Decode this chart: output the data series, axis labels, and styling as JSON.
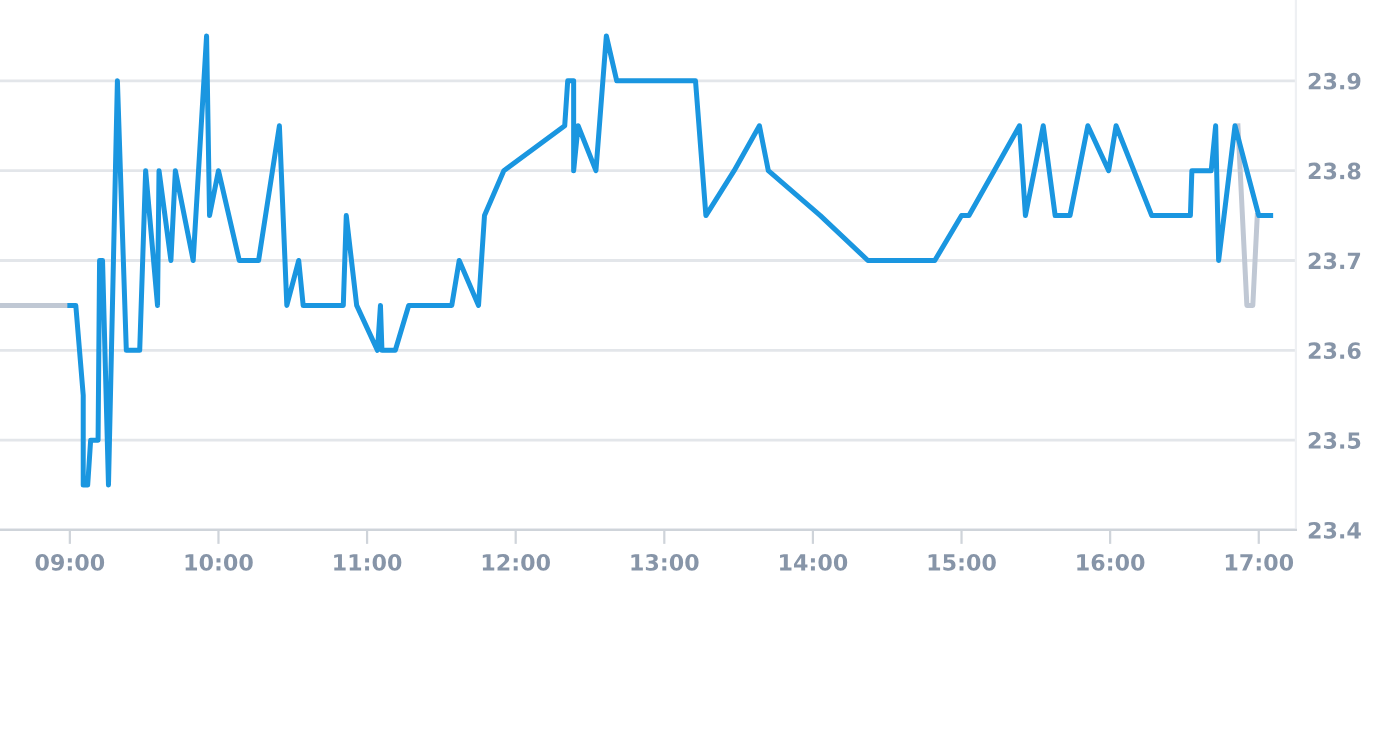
{
  "chart_data": {
    "type": "line",
    "xlim": [
      8.53,
      17.25
    ],
    "ylim": [
      23.4,
      23.99
    ],
    "xticks": [
      {
        "value": 9,
        "label": "09:00"
      },
      {
        "value": 10,
        "label": "10:00"
      },
      {
        "value": 11,
        "label": "11:00"
      },
      {
        "value": 12,
        "label": "12:00"
      },
      {
        "value": 13,
        "label": "13:00"
      },
      {
        "value": 14,
        "label": "14:00"
      },
      {
        "value": 15,
        "label": "15:00"
      },
      {
        "value": 16,
        "label": "16:00"
      },
      {
        "value": 17,
        "label": "17:00"
      }
    ],
    "yticks": [
      23.4,
      23.5,
      23.6,
      23.7,
      23.8,
      23.9
    ],
    "grid": "y",
    "legend": false,
    "marker": "none",
    "line_style": "solid",
    "series": [
      {
        "color": "#c0c8d4",
        "x": [
          8.53,
          9.0,
          9.01,
          16.84,
          16.86,
          16.92,
          16.96,
          16.99
        ],
        "values": [
          23.65,
          23.65,
          null,
          null,
          23.85,
          23.65,
          23.65,
          23.75
        ]
      },
      {
        "color": "#1a96e0",
        "x": [
          9.0,
          9.04,
          9.09,
          9.09,
          9.12,
          9.14,
          9.19,
          9.2,
          9.22,
          9.26,
          9.32,
          9.38,
          9.47,
          9.51,
          9.59,
          9.6,
          9.68,
          9.71,
          9.83,
          9.92,
          9.94,
          10.0,
          10.14,
          10.27,
          10.41,
          10.46,
          10.54,
          10.57,
          10.84,
          10.86,
          10.93,
          11.07,
          11.09,
          11.1,
          11.19,
          11.28,
          11.57,
          11.62,
          11.75,
          11.79,
          11.92,
          12.33,
          12.35,
          12.39,
          12.39,
          12.42,
          12.54,
          12.61,
          12.68,
          13.21,
          13.28,
          13.47,
          13.64,
          13.7,
          14.05,
          14.37,
          14.82,
          15.0,
          15.05,
          15.22,
          15.39,
          15.43,
          15.55,
          15.63,
          15.73,
          15.85,
          15.99,
          16.04,
          16.28,
          16.54,
          16.55,
          16.68,
          16.71,
          16.73,
          16.84,
          17.0,
          17.08
        ],
        "values": [
          23.65,
          23.65,
          23.55,
          23.45,
          23.45,
          23.5,
          23.5,
          23.7,
          23.7,
          23.45,
          23.9,
          23.6,
          23.6,
          23.8,
          23.65,
          23.8,
          23.7,
          23.8,
          23.7,
          23.95,
          23.75,
          23.8,
          23.7,
          23.7,
          23.85,
          23.65,
          23.7,
          23.65,
          23.65,
          23.75,
          23.65,
          23.6,
          23.65,
          23.6,
          23.6,
          23.65,
          23.65,
          23.7,
          23.65,
          23.75,
          23.8,
          23.85,
          23.9,
          23.9,
          23.8,
          23.85,
          23.8,
          23.95,
          23.9,
          23.9,
          23.75,
          23.8,
          23.85,
          23.8,
          23.75,
          23.7,
          23.7,
          23.75,
          23.75,
          23.8,
          23.85,
          23.75,
          23.85,
          23.75,
          23.75,
          23.85,
          23.8,
          23.85,
          23.75,
          23.75,
          23.8,
          23.8,
          23.85,
          23.7,
          23.85,
          23.75,
          23.75
        ]
      }
    ]
  }
}
